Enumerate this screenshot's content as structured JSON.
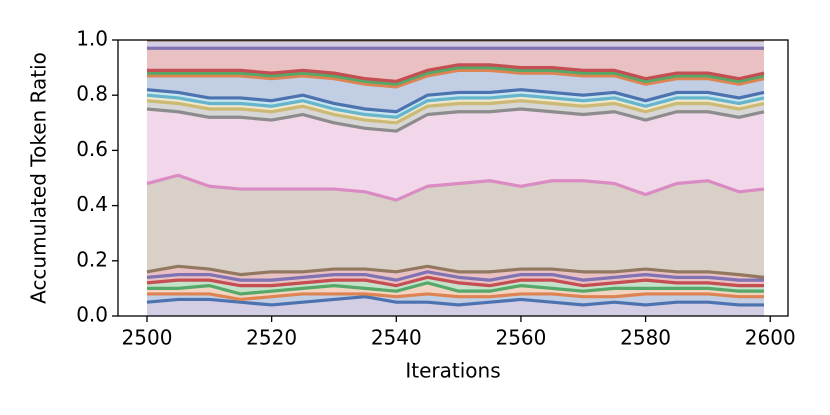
{
  "chart_data": {
    "type": "stacked_area",
    "xlabel": "Iterations",
    "ylabel": "Accumulated Token Ratio",
    "x": [
      2500,
      2505,
      2510,
      2515,
      2520,
      2525,
      2530,
      2535,
      2540,
      2545,
      2550,
      2555,
      2560,
      2565,
      2570,
      2575,
      2580,
      2585,
      2590,
      2595,
      2599
    ],
    "xlim": [
      2495.35,
      2602.85
    ],
    "xticks": [
      2500,
      2520,
      2540,
      2560,
      2580,
      2600
    ],
    "ylim": [
      0,
      1
    ],
    "yticks": [
      {
        "value": 0,
        "label": "0.0"
      },
      {
        "value": 0.2,
        "label": "0.2"
      },
      {
        "value": 0.4,
        "label": "0.4"
      },
      {
        "value": 0.6,
        "label": "0.6"
      },
      {
        "value": 0.8,
        "label": "0.8"
      },
      {
        "value": 1,
        "label": "1.0"
      }
    ],
    "series": [
      {
        "color": "#4c72b0",
        "fill": "#8172b3",
        "values": [
          0.05,
          0.06,
          0.06,
          0.05,
          0.04,
          0.05,
          0.06,
          0.07,
          0.05,
          0.05,
          0.04,
          0.05,
          0.06,
          0.05,
          0.04,
          0.05,
          0.04,
          0.05,
          0.05,
          0.04,
          0.04
        ]
      },
      {
        "color": "#dd8452",
        "fill": "#4c72b0",
        "values": [
          0.03,
          0.02,
          0.02,
          0.01,
          0.03,
          0.03,
          0.02,
          0.01,
          0.02,
          0.03,
          0.03,
          0.02,
          0.02,
          0.03,
          0.03,
          0.02,
          0.04,
          0.03,
          0.03,
          0.03,
          0.03
        ]
      },
      {
        "color": "#55a868",
        "fill": "#dd8452",
        "values": [
          0.02,
          0.02,
          0.03,
          0.02,
          0.02,
          0.02,
          0.03,
          0.02,
          0.02,
          0.04,
          0.02,
          0.02,
          0.03,
          0.02,
          0.02,
          0.03,
          0.02,
          0.02,
          0.02,
          0.02,
          0.02
        ]
      },
      {
        "color": "#c44e52",
        "fill": "#55a868",
        "values": [
          0.02,
          0.03,
          0.02,
          0.03,
          0.02,
          0.02,
          0.02,
          0.03,
          0.02,
          0.02,
          0.03,
          0.02,
          0.02,
          0.03,
          0.02,
          0.02,
          0.03,
          0.02,
          0.02,
          0.02,
          0.02
        ]
      },
      {
        "color": "#8172b3",
        "fill": "#c44e52",
        "values": [
          0.02,
          0.02,
          0.02,
          0.02,
          0.02,
          0.02,
          0.02,
          0.02,
          0.02,
          0.02,
          0.02,
          0.02,
          0.02,
          0.02,
          0.02,
          0.02,
          0.02,
          0.02,
          0.02,
          0.02,
          0.02
        ]
      },
      {
        "color": "#937860",
        "fill": "#c44e52",
        "values": [
          0.02,
          0.03,
          0.02,
          0.02,
          0.03,
          0.02,
          0.02,
          0.02,
          0.03,
          0.02,
          0.02,
          0.03,
          0.02,
          0.02,
          0.03,
          0.02,
          0.02,
          0.02,
          0.02,
          0.02,
          0.01
        ]
      },
      {
        "color": "#da8bc3",
        "fill": "#937860",
        "values": [
          0.32,
          0.33,
          0.3,
          0.31,
          0.3,
          0.3,
          0.29,
          0.28,
          0.26,
          0.29,
          0.32,
          0.33,
          0.3,
          0.32,
          0.33,
          0.32,
          0.27,
          0.32,
          0.33,
          0.3,
          0.32
        ]
      },
      {
        "color": "#8c8c8c",
        "fill": "#da8bc3",
        "values": [
          0.27,
          0.23,
          0.25,
          0.26,
          0.25,
          0.27,
          0.24,
          0.23,
          0.25,
          0.26,
          0.26,
          0.25,
          0.28,
          0.25,
          0.24,
          0.26,
          0.27,
          0.26,
          0.25,
          0.27,
          0.28
        ]
      },
      {
        "color": "#ccb974",
        "fill": "#8c8c8c",
        "values": [
          0.03,
          0.03,
          0.03,
          0.03,
          0.03,
          0.03,
          0.03,
          0.03,
          0.03,
          0.03,
          0.03,
          0.03,
          0.03,
          0.03,
          0.03,
          0.03,
          0.03,
          0.03,
          0.03,
          0.03,
          0.03
        ]
      },
      {
        "color": "#64b5cd",
        "fill": "#ccb974",
        "values": [
          0.02,
          0.02,
          0.02,
          0.02,
          0.02,
          0.02,
          0.02,
          0.02,
          0.02,
          0.02,
          0.02,
          0.02,
          0.02,
          0.02,
          0.02,
          0.02,
          0.02,
          0.02,
          0.02,
          0.02,
          0.02
        ]
      },
      {
        "color": "#4c72b0",
        "fill": "#64b5cd",
        "values": [
          0.02,
          0.02,
          0.02,
          0.02,
          0.02,
          0.02,
          0.02,
          0.02,
          0.02,
          0.02,
          0.02,
          0.02,
          0.02,
          0.02,
          0.02,
          0.02,
          0.02,
          0.02,
          0.02,
          0.02,
          0.02
        ]
      },
      {
        "color": "#dd8452",
        "fill": "#4c72b0",
        "values": [
          0.05,
          0.06,
          0.08,
          0.08,
          0.08,
          0.07,
          0.09,
          0.09,
          0.09,
          0.07,
          0.08,
          0.08,
          0.06,
          0.07,
          0.07,
          0.06,
          0.06,
          0.05,
          0.05,
          0.05,
          0.05
        ]
      },
      {
        "color": "#55a868",
        "fill": "#dd8452",
        "values": [
          0.01,
          0.01,
          0.01,
          0.01,
          0.01,
          0.01,
          0.01,
          0.01,
          0.01,
          0.01,
          0.01,
          0.01,
          0.01,
          0.01,
          0.01,
          0.01,
          0.01,
          0.01,
          0.01,
          0.01,
          0.01
        ]
      },
      {
        "color": "#c44e52",
        "fill": "#55a868",
        "values": [
          0.01,
          0.01,
          0.01,
          0.01,
          0.01,
          0.01,
          0.01,
          0.01,
          0.01,
          0.01,
          0.01,
          0.01,
          0.01,
          0.01,
          0.01,
          0.01,
          0.01,
          0.01,
          0.01,
          0.01,
          0.01
        ]
      },
      {
        "color": "#8172b3",
        "fill": "#c44e52",
        "values": [
          0.08,
          0.08,
          0.08,
          0.08,
          0.09,
          0.08,
          0.09,
          0.11,
          0.12,
          0.08,
          0.06,
          0.06,
          0.07,
          0.07,
          0.08,
          0.08,
          0.11,
          0.09,
          0.09,
          0.11,
          0.09
        ]
      },
      {
        "color": "#937860",
        "fill": "#8172b3",
        "values": [
          0.03,
          0.03,
          0.03,
          0.03,
          0.03,
          0.03,
          0.03,
          0.03,
          0.03,
          0.03,
          0.03,
          0.03,
          0.03,
          0.03,
          0.03,
          0.03,
          0.03,
          0.03,
          0.03,
          0.03,
          0.03
        ]
      }
    ]
  }
}
